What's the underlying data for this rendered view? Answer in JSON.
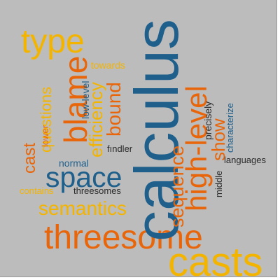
{
  "words": [
    {
      "id": "calculus",
      "text": "calculus",
      "color": "blue"
    },
    {
      "id": "casts",
      "text": "casts",
      "color": "gold"
    },
    {
      "id": "threesome",
      "text": "threesome",
      "color": "orange"
    },
    {
      "id": "type",
      "text": "type",
      "color": "gold"
    },
    {
      "id": "space",
      "text": "space",
      "color": "blue"
    },
    {
      "id": "blame",
      "text": "blame",
      "color": "orange"
    },
    {
      "id": "semantics",
      "text": "semantics",
      "color": "orange"
    },
    {
      "id": "high-level",
      "text": "high-level",
      "color": "gold"
    },
    {
      "id": "sequence",
      "text": "sequence",
      "color": "orange"
    },
    {
      "id": "bound",
      "text": "bound",
      "color": "orange"
    },
    {
      "id": "efficiency",
      "text": "efficiency",
      "color": "gold"
    },
    {
      "id": "questions",
      "text": "questions",
      "color": "gold"
    },
    {
      "id": "cast",
      "text": "cast",
      "color": "orange"
    },
    {
      "id": "show",
      "text": "show",
      "color": "orange"
    },
    {
      "id": "towards",
      "text": "towards",
      "color": "gold"
    },
    {
      "id": "low-level",
      "text": "low-level",
      "color": "blue"
    },
    {
      "id": "lower",
      "text": "lower",
      "color": "orange"
    },
    {
      "id": "precisely",
      "text": "precisely",
      "color": "dark"
    },
    {
      "id": "characterize",
      "text": "characterize",
      "color": "blue"
    },
    {
      "id": "fındler",
      "text": "fındler",
      "color": "dark"
    },
    {
      "id": "normal",
      "text": "normal",
      "color": "blue"
    },
    {
      "id": "languages",
      "text": "languages",
      "color": "dark"
    },
    {
      "id": "middle",
      "text": "middle",
      "color": "dark"
    },
    {
      "id": "contains",
      "text": "contains",
      "color": "gold"
    },
    {
      "id": "threesomes",
      "text": "threesomes",
      "color": "dark"
    }
  ],
  "palette": {
    "orange": "#e8650a",
    "gold": "#f3b400",
    "blue": "#1f5f8b",
    "dark": "#2b2b2b",
    "background": "#bcbcbc"
  }
}
